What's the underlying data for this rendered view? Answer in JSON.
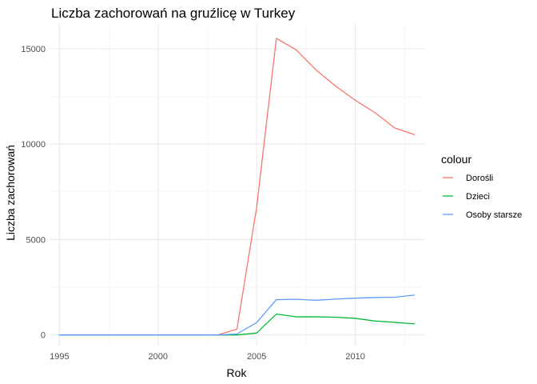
{
  "chart_data": {
    "type": "line",
    "title": "Liczba zachorowań na gruźlicę w Turkey",
    "xlabel": "Rok",
    "ylabel": "Liczba zachorowań",
    "xlim": [
      1994.5,
      2013.5
    ],
    "ylim": [
      -600,
      16300
    ],
    "x_ticks": [
      1995,
      2000,
      2005,
      2010
    ],
    "y_ticks": [
      0,
      5000,
      10000,
      15000
    ],
    "grid": true,
    "legend": {
      "title": "colour",
      "position": "right"
    },
    "x": [
      1995,
      1996,
      1997,
      1998,
      1999,
      2000,
      2001,
      2002,
      2003,
      2004,
      2005,
      2006,
      2007,
      2008,
      2009,
      2010,
      2011,
      2012,
      2013
    ],
    "series": [
      {
        "name": "Dorośli",
        "color": "#F8766D",
        "values": [
          0,
          0,
          0,
          0,
          0,
          0,
          0,
          0,
          0,
          300,
          6700,
          15550,
          14950,
          13900,
          13050,
          12300,
          11650,
          10850,
          10500
        ]
      },
      {
        "name": "Dzieci",
        "color": "#00BA38",
        "values": [
          0,
          0,
          0,
          0,
          0,
          0,
          0,
          0,
          0,
          0,
          100,
          1100,
          950,
          950,
          930,
          870,
          730,
          660,
          580
        ]
      },
      {
        "name": "Osoby starsze",
        "color": "#619CFF",
        "values": [
          0,
          0,
          0,
          0,
          0,
          0,
          0,
          0,
          0,
          50,
          650,
          1850,
          1870,
          1820,
          1880,
          1930,
          1960,
          1980,
          2090
        ]
      }
    ]
  }
}
